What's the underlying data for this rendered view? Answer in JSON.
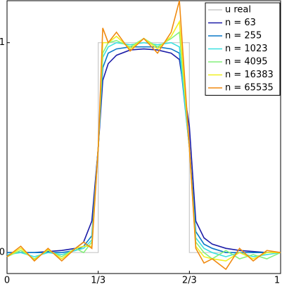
{
  "chart_data": {
    "type": "line",
    "x": [
      0,
      0.05,
      0.1,
      0.15,
      0.2,
      0.25,
      0.28,
      0.31,
      0.3333,
      0.3333,
      0.35,
      0.37,
      0.4,
      0.45,
      0.5,
      0.55,
      0.6,
      0.63,
      0.6667,
      0.6667,
      0.69,
      0.72,
      0.75,
      0.8,
      0.85,
      0.9,
      0.95,
      1
    ],
    "series": [
      {
        "name": "u real",
        "color": "#c8c8c8",
        "values": [
          0,
          0,
          0,
          0,
          0,
          0,
          0,
          0,
          0,
          1,
          1,
          1,
          1,
          1,
          1,
          1,
          1,
          1,
          1,
          0,
          0,
          0,
          0,
          0,
          0,
          0,
          0,
          0
        ]
      },
      {
        "name": "n = 63",
        "color": "#1c1ca8",
        "values": [
          0,
          0,
          0,
          0.005,
          0.01,
          0.02,
          0.05,
          0.15,
          0.5,
          0.5,
          0.82,
          0.9,
          0.94,
          0.965,
          0.97,
          0.965,
          0.95,
          0.92,
          0.6,
          0.6,
          0.15,
          0.07,
          0.04,
          0.02,
          0.01,
          0.005,
          0,
          0
        ]
      },
      {
        "name": "n = 255",
        "color": "#0a78c8",
        "values": [
          0,
          0,
          0,
          0,
          0,
          0.01,
          0.03,
          0.08,
          0.5,
          0.5,
          0.88,
          0.95,
          0.97,
          0.98,
          0.98,
          0.98,
          0.97,
          0.95,
          0.5,
          0.5,
          0.1,
          0.04,
          0.02,
          0,
          0,
          0,
          0,
          0
        ]
      },
      {
        "name": "n = 1023",
        "color": "#3ce0e0",
        "values": [
          -0.01,
          0,
          -0.02,
          0,
          -0.01,
          0.01,
          0.02,
          0.06,
          0.5,
          0.5,
          0.93,
          0.98,
          1.0,
          0.99,
          1.0,
          0.99,
          1.0,
          0.98,
          0.5,
          0.5,
          0.07,
          0.02,
          0,
          -0.02,
          0,
          -0.02,
          -0.01,
          0
        ]
      },
      {
        "name": "n = 4095",
        "color": "#84f07c",
        "values": [
          -0.02,
          0.01,
          -0.03,
          0.01,
          -0.02,
          0.02,
          0,
          0.05,
          0.5,
          0.5,
          0.95,
          1.0,
          1.01,
          0.98,
          1.02,
          0.98,
          1.02,
          1.05,
          0.5,
          0.5,
          0.05,
          0,
          -0.03,
          0.01,
          -0.03,
          -0.01,
          -0.03,
          0
        ]
      },
      {
        "name": "n = 16383",
        "color": "#f0f020",
        "values": [
          -0.02,
          0.02,
          -0.035,
          0.015,
          -0.03,
          0.02,
          0.03,
          0.03,
          0.5,
          0.5,
          1.0,
          1.0,
          1.03,
          0.97,
          1.02,
          0.97,
          1.03,
          1.1,
          0.5,
          0.5,
          0.03,
          -0.02,
          -0.03,
          -0.04,
          0,
          -0.03,
          0,
          0
        ]
      },
      {
        "name": "n = 65535",
        "color": "#f08a10",
        "values": [
          -0.02,
          0.03,
          -0.04,
          0.02,
          -0.04,
          0.02,
          0.05,
          0.02,
          0.5,
          0.5,
          1.07,
          1.0,
          1.05,
          0.96,
          1.02,
          0.95,
          1.05,
          1.2,
          0.5,
          0.5,
          0.02,
          -0.05,
          -0.03,
          -0.08,
          0.02,
          -0.04,
          0.01,
          0
        ]
      }
    ],
    "xlim": [
      0,
      1
    ],
    "ylim": [
      -0.1,
      1.2
    ],
    "xticks": [
      0,
      {
        "value": 0.3333,
        "label": "1/3"
      },
      {
        "value": 0.6667,
        "label": "2/3"
      },
      1
    ],
    "yticks": [
      0,
      1
    ],
    "legend": "upper right"
  }
}
